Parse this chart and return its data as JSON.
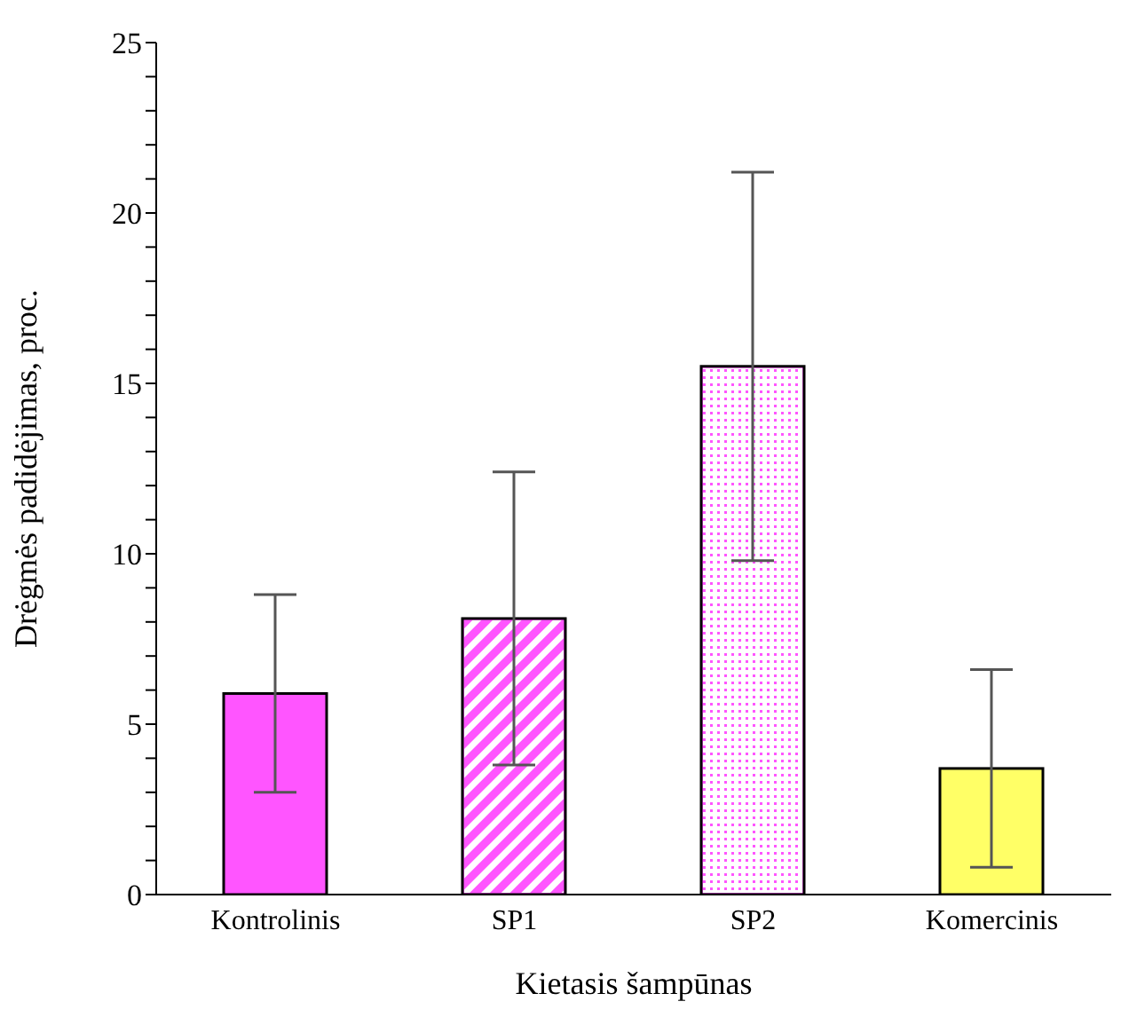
{
  "chart_data": {
    "type": "bar",
    "xlabel": "Kietasis šampūnas",
    "ylabel": "Drėgmės padidėjimas, proc.",
    "categories": [
      "Kontrolinis",
      "SP1",
      "SP2",
      "Komercinis"
    ],
    "values": [
      5.9,
      8.1,
      15.5,
      3.7
    ],
    "errors": [
      2.9,
      4.3,
      5.7,
      2.9
    ],
    "colors": [
      "#ff55ff",
      "#ff55ff",
      "#ff55ff",
      "#ffff66"
    ],
    "ylim": [
      0,
      25
    ],
    "yticks": [
      0,
      {
        "value": 1,
        "label": null
      },
      {
        "value": 2,
        "label": null
      },
      {
        "value": 3,
        "label": null
      },
      {
        "value": 4,
        "label": null
      },
      5,
      {
        "value": 6,
        "label": null
      },
      {
        "value": 7,
        "label": null
      },
      {
        "value": 8,
        "label": null
      },
      {
        "value": 9,
        "label": null
      },
      10,
      {
        "value": 11,
        "label": null
      },
      {
        "value": 12,
        "label": null
      },
      {
        "value": 13,
        "label": null
      },
      {
        "value": 14,
        "label": null
      },
      15,
      {
        "value": 16,
        "label": null
      },
      {
        "value": 17,
        "label": null
      },
      {
        "value": 18,
        "label": null
      },
      {
        "value": 19,
        "label": null
      },
      20,
      {
        "value": 21,
        "label": null
      },
      {
        "value": 22,
        "label": null
      },
      {
        "value": 23,
        "label": null
      },
      {
        "value": 24,
        "label": null
      },
      25
    ],
    "grid": false,
    "legend": false
  }
}
